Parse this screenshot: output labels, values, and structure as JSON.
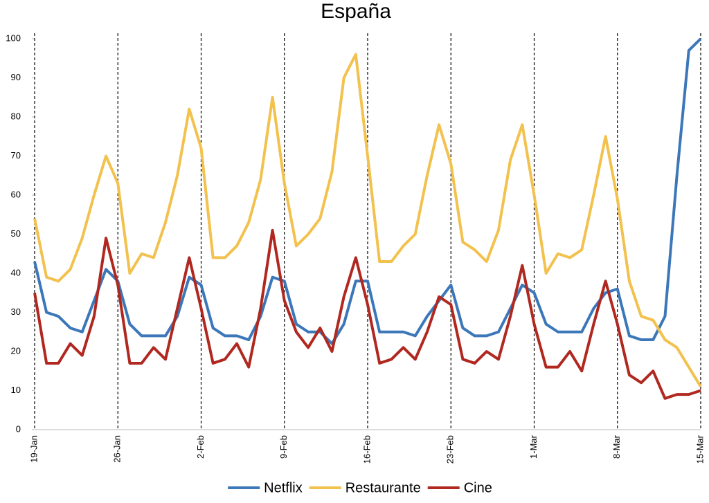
{
  "chart_data": {
    "type": "line",
    "title": "España",
    "categories": [
      "19-Jan",
      null,
      null,
      null,
      null,
      null,
      null,
      "26-Jan",
      null,
      null,
      null,
      null,
      null,
      null,
      "2-Feb",
      null,
      null,
      null,
      null,
      null,
      null,
      "9-Feb",
      null,
      null,
      null,
      null,
      null,
      null,
      "16-Feb",
      null,
      null,
      null,
      null,
      null,
      null,
      "23-Feb",
      null,
      null,
      null,
      null,
      null,
      null,
      "1-Mar",
      null,
      null,
      null,
      null,
      null,
      null,
      "8-Mar",
      null,
      null,
      null,
      null,
      null,
      null,
      "15-Mar"
    ],
    "series": [
      {
        "name": "Netflix",
        "color": "#3b77b9",
        "values": [
          43,
          30,
          29,
          26,
          25,
          33,
          41,
          38,
          27,
          24,
          24,
          24,
          29,
          39,
          37,
          26,
          24,
          24,
          23,
          29,
          39,
          38,
          27,
          25,
          25,
          22,
          27,
          38,
          38,
          25,
          25,
          25,
          24,
          29,
          33,
          37,
          26,
          24,
          24,
          25,
          31,
          37,
          35,
          27,
          25,
          25,
          25,
          31,
          35,
          36,
          24,
          23,
          23,
          29,
          65,
          97,
          100
        ]
      },
      {
        "name": "Restaurante",
        "color": "#f2c14e",
        "values": [
          54,
          39,
          38,
          41,
          49,
          60,
          70,
          63,
          40,
          45,
          44,
          53,
          65,
          82,
          72,
          44,
          44,
          47,
          53,
          64,
          85,
          63,
          47,
          50,
          54,
          66,
          90,
          96,
          70,
          43,
          43,
          47,
          50,
          65,
          78,
          68,
          48,
          46,
          43,
          51,
          69,
          78,
          60,
          40,
          45,
          44,
          46,
          60,
          75,
          59,
          38,
          29,
          28,
          23,
          21,
          16,
          11
        ]
      },
      {
        "name": "Cine",
        "color": "#b0281f",
        "values": [
          35,
          17,
          17,
          22,
          19,
          29,
          49,
          37,
          17,
          17,
          21,
          18,
          31,
          44,
          31,
          17,
          18,
          22,
          16,
          31,
          51,
          33,
          25,
          21,
          26,
          20,
          34,
          44,
          32,
          17,
          18,
          21,
          18,
          25,
          34,
          32,
          18,
          17,
          20,
          18,
          29,
          42,
          27,
          16,
          16,
          20,
          15,
          27,
          38,
          27,
          14,
          12,
          15,
          8,
          9,
          9,
          10
        ]
      }
    ],
    "ylim": [
      0,
      100
    ],
    "yticks": [
      0,
      10,
      20,
      30,
      40,
      50,
      60,
      70,
      80,
      90,
      100
    ],
    "grid": false
  }
}
